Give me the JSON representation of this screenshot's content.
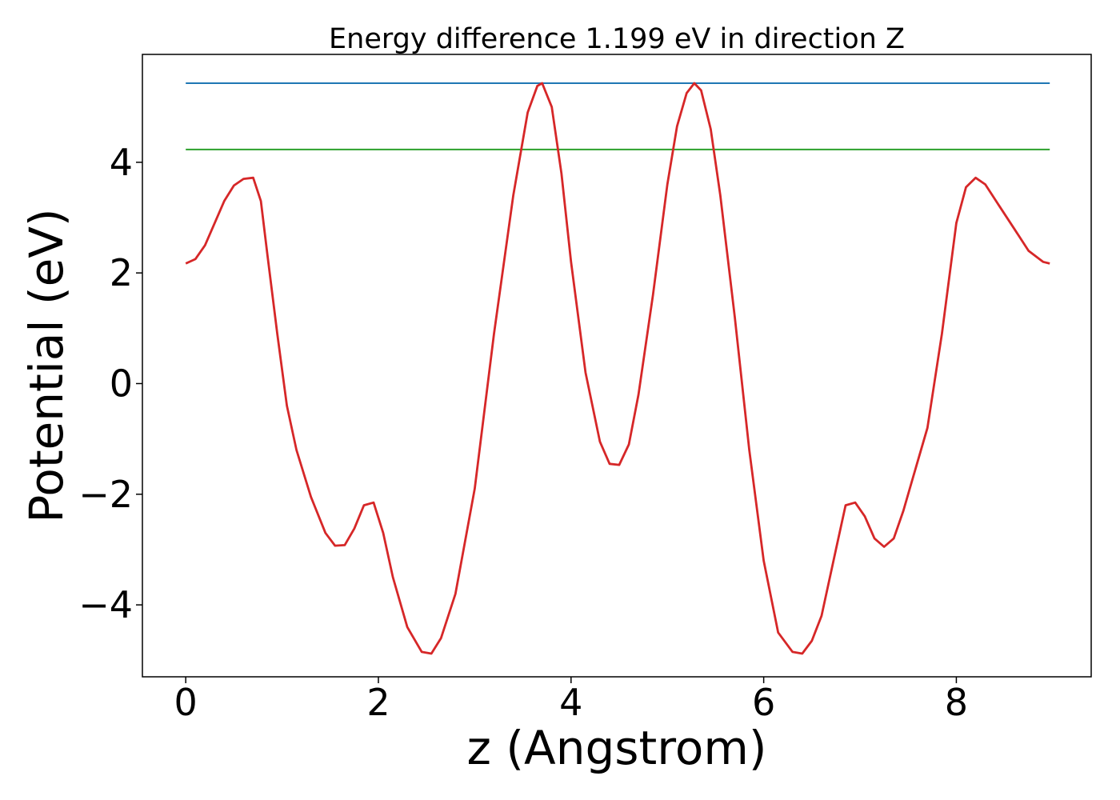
{
  "chart_data": {
    "type": "line",
    "title": "Energy difference 1.199 eV in direction Z",
    "xlabel": "z (Angstrom)",
    "ylabel": "Potential (eV)",
    "xlim": [
      -0.45,
      9.4
    ],
    "ylim": [
      -5.3,
      5.95
    ],
    "xticks": [
      0,
      2,
      4,
      6,
      8
    ],
    "xtick_labels": [
      "0",
      "2",
      "4",
      "6",
      "8"
    ],
    "yticks": [
      -4,
      -2,
      0,
      2,
      4
    ],
    "ytick_labels": [
      "−4",
      "−2",
      "0",
      "2",
      "4"
    ],
    "grid": false,
    "legend": "none",
    "series": [
      {
        "color": "#1f77b4",
        "x": [
          0,
          8.97
        ],
        "y": [
          5.43,
          5.43
        ]
      },
      {
        "color": "#2ca02c",
        "x": [
          0,
          8.97
        ],
        "y": [
          4.23,
          4.23
        ]
      },
      {
        "color": "#d62728",
        "x": [
          0,
          0.1,
          0.2,
          0.3,
          0.4,
          0.5,
          0.6,
          0.7,
          0.78,
          0.85,
          0.95,
          1.05,
          1.15,
          1.3,
          1.45,
          1.55,
          1.65,
          1.75,
          1.85,
          1.95,
          2.05,
          2.15,
          2.3,
          2.45,
          2.55,
          2.65,
          2.8,
          3.0,
          3.2,
          3.4,
          3.55,
          3.65,
          3.7,
          3.8,
          3.9,
          4.0,
          4.15,
          4.3,
          4.4,
          4.5,
          4.6,
          4.7,
          4.85,
          5.0,
          5.1,
          5.2,
          5.28,
          5.35,
          5.45,
          5.55,
          5.7,
          5.85,
          6.0,
          6.15,
          6.3,
          6.4,
          6.5,
          6.6,
          6.75,
          6.85,
          6.95,
          7.05,
          7.15,
          7.25,
          7.35,
          7.45,
          7.55,
          7.7,
          7.85,
          8.0,
          8.1,
          8.2,
          8.3,
          8.45,
          8.6,
          8.75,
          8.9,
          8.97
        ],
        "y": [
          2.17,
          2.25,
          2.5,
          2.9,
          3.3,
          3.58,
          3.7,
          3.72,
          3.3,
          2.3,
          0.9,
          -0.4,
          -1.2,
          -2.05,
          -2.7,
          -2.93,
          -2.92,
          -2.62,
          -2.2,
          -2.15,
          -2.7,
          -3.5,
          -4.4,
          -4.85,
          -4.88,
          -4.6,
          -3.8,
          -1.9,
          0.9,
          3.4,
          4.9,
          5.38,
          5.43,
          5.0,
          3.8,
          2.2,
          0.2,
          -1.05,
          -1.45,
          -1.47,
          -1.1,
          -0.2,
          1.6,
          3.6,
          4.65,
          5.25,
          5.43,
          5.3,
          4.6,
          3.4,
          1.2,
          -1.2,
          -3.2,
          -4.5,
          -4.85,
          -4.88,
          -4.65,
          -4.2,
          -3.0,
          -2.2,
          -2.15,
          -2.4,
          -2.8,
          -2.95,
          -2.8,
          -2.3,
          -1.7,
          -0.8,
          0.9,
          2.9,
          3.55,
          3.72,
          3.6,
          3.2,
          2.8,
          2.4,
          2.2,
          2.17
        ]
      }
    ]
  }
}
